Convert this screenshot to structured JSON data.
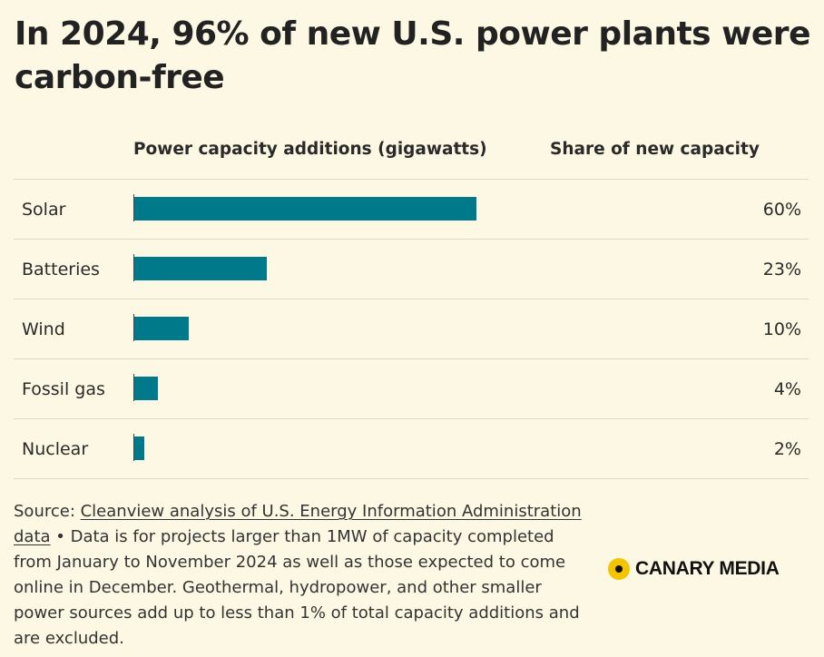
{
  "chart_data": {
    "type": "bar",
    "orientation": "horizontal",
    "title": "In 2024, 96% of new U.S. power plants were carbon-free",
    "value_header": "Power capacity additions (gigawatts)",
    "share_header": "Share of new capacity",
    "categories": [
      "Solar",
      "Batteries",
      "Wind",
      "Fossil gas",
      "Nuclear"
    ],
    "values": [
      37.5,
      14.5,
      6.0,
      2.6,
      1.1
    ],
    "shares": [
      "60%",
      "23%",
      "10%",
      "4%",
      "2%"
    ],
    "xlim": [
      0,
      37.5
    ],
    "bar_color": "#007a8a"
  },
  "footer": {
    "source_prefix": "Source: ",
    "source_link": "Cleanview analysis of U.S. Energy Information Administration data",
    "note": " • Data is for projects larger than 1MW of capacity completed from January to November 2024 as well as those expected to come online in December. Geothermal, hydropower, and other smaller power sources add up to less than 1% of total capacity additions and are excluded."
  },
  "logo": {
    "text": "CANARY MEDIA",
    "color": "#f4c400"
  }
}
